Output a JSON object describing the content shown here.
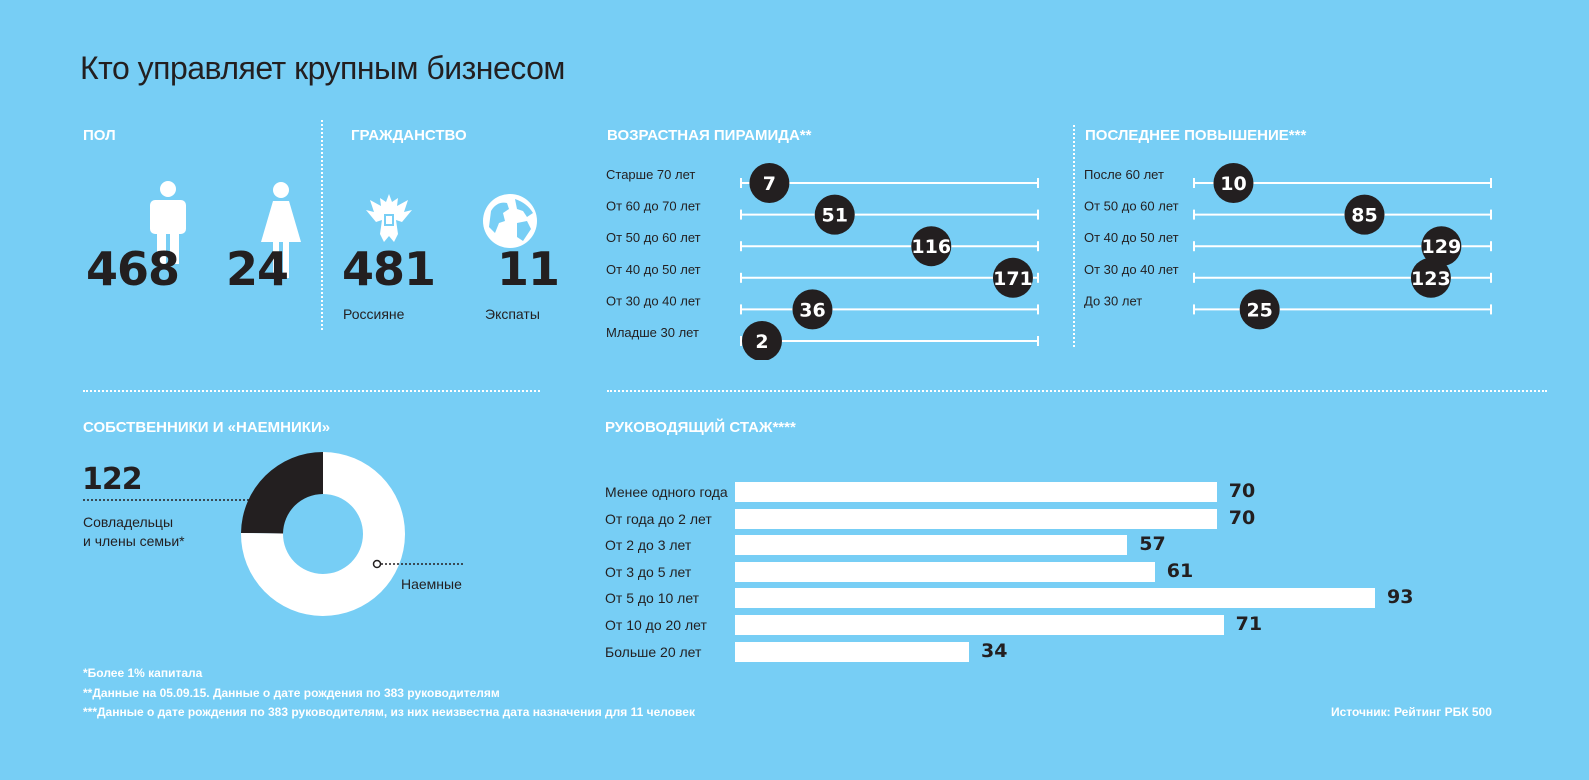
{
  "title": "Кто управляет крупным бизнесом",
  "gender": {
    "heading": "ПОЛ",
    "men": "468",
    "women": "24"
  },
  "citizenship": {
    "heading": "ГРАЖДАНСТВО",
    "russians_value": "481",
    "russians_label": "Россияне",
    "expats_value": "11",
    "expats_label": "Экспаты"
  },
  "owners": {
    "heading": "СОБСТВЕННИКИ И «НАЕМНИКИ»",
    "coowners_value": "122",
    "coowners_label_1": "Совладельцы",
    "coowners_label_2": "и члены семьи*",
    "hired_label": "Наемные"
  },
  "footnotes": [
    "*Более 1% капитала",
    "**Данные на 05.09.15. Данные о дате рождения по 383 руководителям",
    "***Данные о дате рождения по 383 руководителям, из них неизвестна дата назначения для 11 человек"
  ],
  "source": "Источник: Рейтинг РБК 500",
  "colors": {
    "background": "#77cef5",
    "dark": "#231f20",
    "white": "#ffffff"
  },
  "chart_data": [
    {
      "type": "dot",
      "title": "ВОЗРАСТНАЯ ПИРАМИДА**",
      "categories": [
        "Старше 70 лет",
        "От 60 до 70 лет",
        "От 50 до 60 лет",
        "От 40 до 50 лет",
        "От 30 до 40 лет",
        "Младше 30 лет"
      ],
      "values": [
        7,
        51,
        116,
        171,
        36,
        2
      ],
      "xlim": [
        0,
        200
      ]
    },
    {
      "type": "dot",
      "title": "ПОСЛЕДНЕЕ ПОВЫШЕНИЕ***",
      "categories": [
        "После 60 лет",
        "От 50 до 60 лет",
        "От 40 до 50 лет",
        "От 30 до 40 лет",
        "До 30 лет"
      ],
      "values": [
        10,
        85,
        129,
        123,
        25
      ],
      "xlim": [
        0,
        170
      ]
    },
    {
      "type": "bar",
      "title": "РУКОВОДЯЩИЙ СТАЖ****",
      "categories": [
        "Менее одного года",
        "От года до 2 лет",
        "От 2 до 3 лет",
        "От 3 до 5 лет",
        "От 5 до 10 лет",
        "От 10 до 20 лет",
        "Больше 20 лет"
      ],
      "values": [
        70,
        70,
        57,
        61,
        93,
        71,
        34
      ]
    },
    {
      "type": "pie",
      "title": "СОБСТВЕННИКИ И «НАЕМНИКИ»",
      "categories": [
        "Совладельцы и члены семьи*",
        "Наемные"
      ],
      "values": [
        122,
        370
      ]
    }
  ]
}
